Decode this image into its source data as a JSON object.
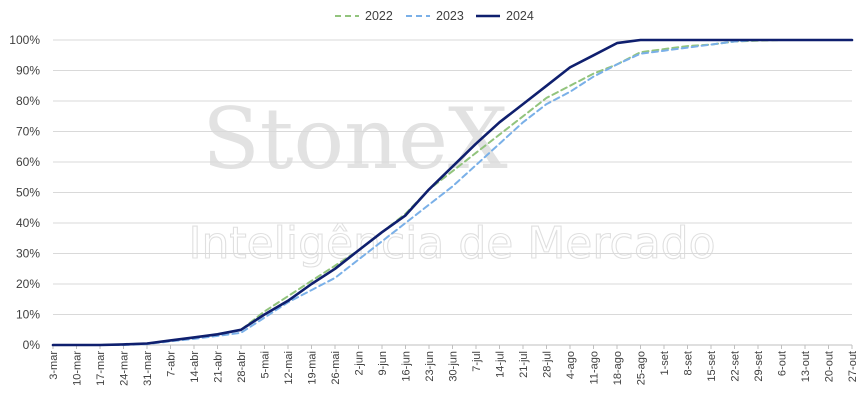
{
  "watermark": {
    "main": "StoneX",
    "sub": "Inteligência de Mercado"
  },
  "colors": {
    "grid": "#d9d9d9",
    "axis": "#bfbfbf",
    "text": "#404040"
  },
  "chart_data": {
    "type": "line",
    "title": "",
    "xlabel": "",
    "ylabel": "",
    "ylim": [
      0,
      100
    ],
    "y_ticks": [
      0,
      10,
      20,
      30,
      40,
      50,
      60,
      70,
      80,
      90,
      100
    ],
    "y_tick_labels": [
      "0%",
      "10%",
      "20%",
      "30%",
      "40%",
      "50%",
      "60%",
      "70%",
      "80%",
      "90%",
      "100%"
    ],
    "grid": "horizontal",
    "legend": "top-center",
    "categories": [
      "3-mar",
      "10-mar",
      "17-mar",
      "24-mar",
      "31-mar",
      "7-abr",
      "14-abr",
      "21-abr",
      "28-abr",
      "5-mai",
      "12-mai",
      "19-mai",
      "26-mai",
      "2-jun",
      "9-jun",
      "16-jun",
      "23-jun",
      "30-jun",
      "7-jul",
      "14-jul",
      "21-jul",
      "28-jul",
      "4-ago",
      "11-ago",
      "18-ago",
      "25-ago",
      "1-set",
      "8-set",
      "15-set",
      "22-set",
      "29-set",
      "6-out",
      "13-out",
      "20-out",
      "27-out"
    ],
    "series": [
      {
        "name": "2022",
        "color": "#92c47d",
        "dash": "dashed",
        "values": [
          0,
          0,
          0,
          0.2,
          0.5,
          1.5,
          2.5,
          3.5,
          5,
          11,
          16,
          21,
          26,
          31,
          37,
          43,
          51,
          57,
          63,
          69,
          75,
          81,
          85,
          89,
          92,
          96,
          97,
          98,
          98.5,
          99.5,
          99.8,
          100,
          100,
          100,
          100
        ]
      },
      {
        "name": "2023",
        "color": "#7ab0e8",
        "dash": "dashed",
        "values": [
          0,
          0,
          0,
          0,
          0.3,
          1.2,
          2,
          3,
          4,
          9,
          14,
          18,
          22,
          28,
          34,
          40,
          46,
          52,
          59,
          66,
          73,
          79,
          83,
          88,
          92,
          95.5,
          96.5,
          97.5,
          98.5,
          99.5,
          100,
          100,
          100,
          100,
          100
        ]
      },
      {
        "name": "2024",
        "color": "#0f1f6e",
        "dash": "solid",
        "values": [
          0,
          0,
          0,
          0.2,
          0.5,
          1.5,
          2.5,
          3.5,
          5,
          10,
          14.5,
          20,
          25,
          31,
          37,
          42.5,
          51,
          58.5,
          66,
          73,
          79,
          85,
          91,
          95,
          99,
          100,
          100,
          100,
          100,
          100,
          100,
          100,
          100,
          100,
          100
        ]
      }
    ]
  }
}
